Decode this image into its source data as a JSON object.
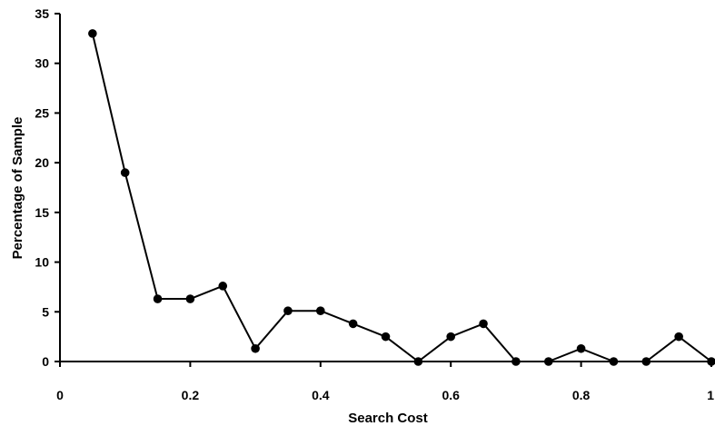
{
  "chart_data": {
    "type": "line",
    "title": "",
    "xlabel": "Search Cost",
    "ylabel": "Percentage of Sample",
    "xlim": [
      0,
      1
    ],
    "ylim": [
      0,
      35
    ],
    "x_ticks": [
      0,
      0.2,
      0.4,
      0.6,
      0.8,
      1
    ],
    "x_tick_labels": [
      "0",
      "0.2",
      "0.4",
      "0.6",
      "0.8",
      "1"
    ],
    "y_ticks": [
      0,
      5,
      10,
      15,
      20,
      25,
      30,
      35
    ],
    "y_tick_labels": [
      "0",
      "5",
      "10",
      "15",
      "20",
      "25",
      "30",
      "35"
    ],
    "grid": false,
    "legend": "none",
    "series": [
      {
        "color": "#000000",
        "marker": "circle",
        "points": [
          {
            "x": 0.05,
            "y": 33
          },
          {
            "x": 0.1,
            "y": 19
          },
          {
            "x": 0.15,
            "y": 6.3
          },
          {
            "x": 0.2,
            "y": 6.3
          },
          {
            "x": 0.25,
            "y": 7.6
          },
          {
            "x": 0.3,
            "y": 1.3
          },
          {
            "x": 0.35,
            "y": 5.1
          },
          {
            "x": 0.4,
            "y": 5.1
          },
          {
            "x": 0.45,
            "y": 3.8
          },
          {
            "x": 0.5,
            "y": 2.5
          },
          {
            "x": 0.55,
            "y": 0
          },
          {
            "x": 0.6,
            "y": 2.5
          },
          {
            "x": 0.65,
            "y": 3.8
          },
          {
            "x": 0.7,
            "y": 0
          },
          {
            "x": 0.75,
            "y": 0
          },
          {
            "x": 0.8,
            "y": 1.3
          },
          {
            "x": 0.85,
            "y": 0
          },
          {
            "x": 0.9,
            "y": 0
          },
          {
            "x": 0.95,
            "y": 2.5
          },
          {
            "x": 1.0,
            "y": 0
          }
        ]
      }
    ]
  }
}
